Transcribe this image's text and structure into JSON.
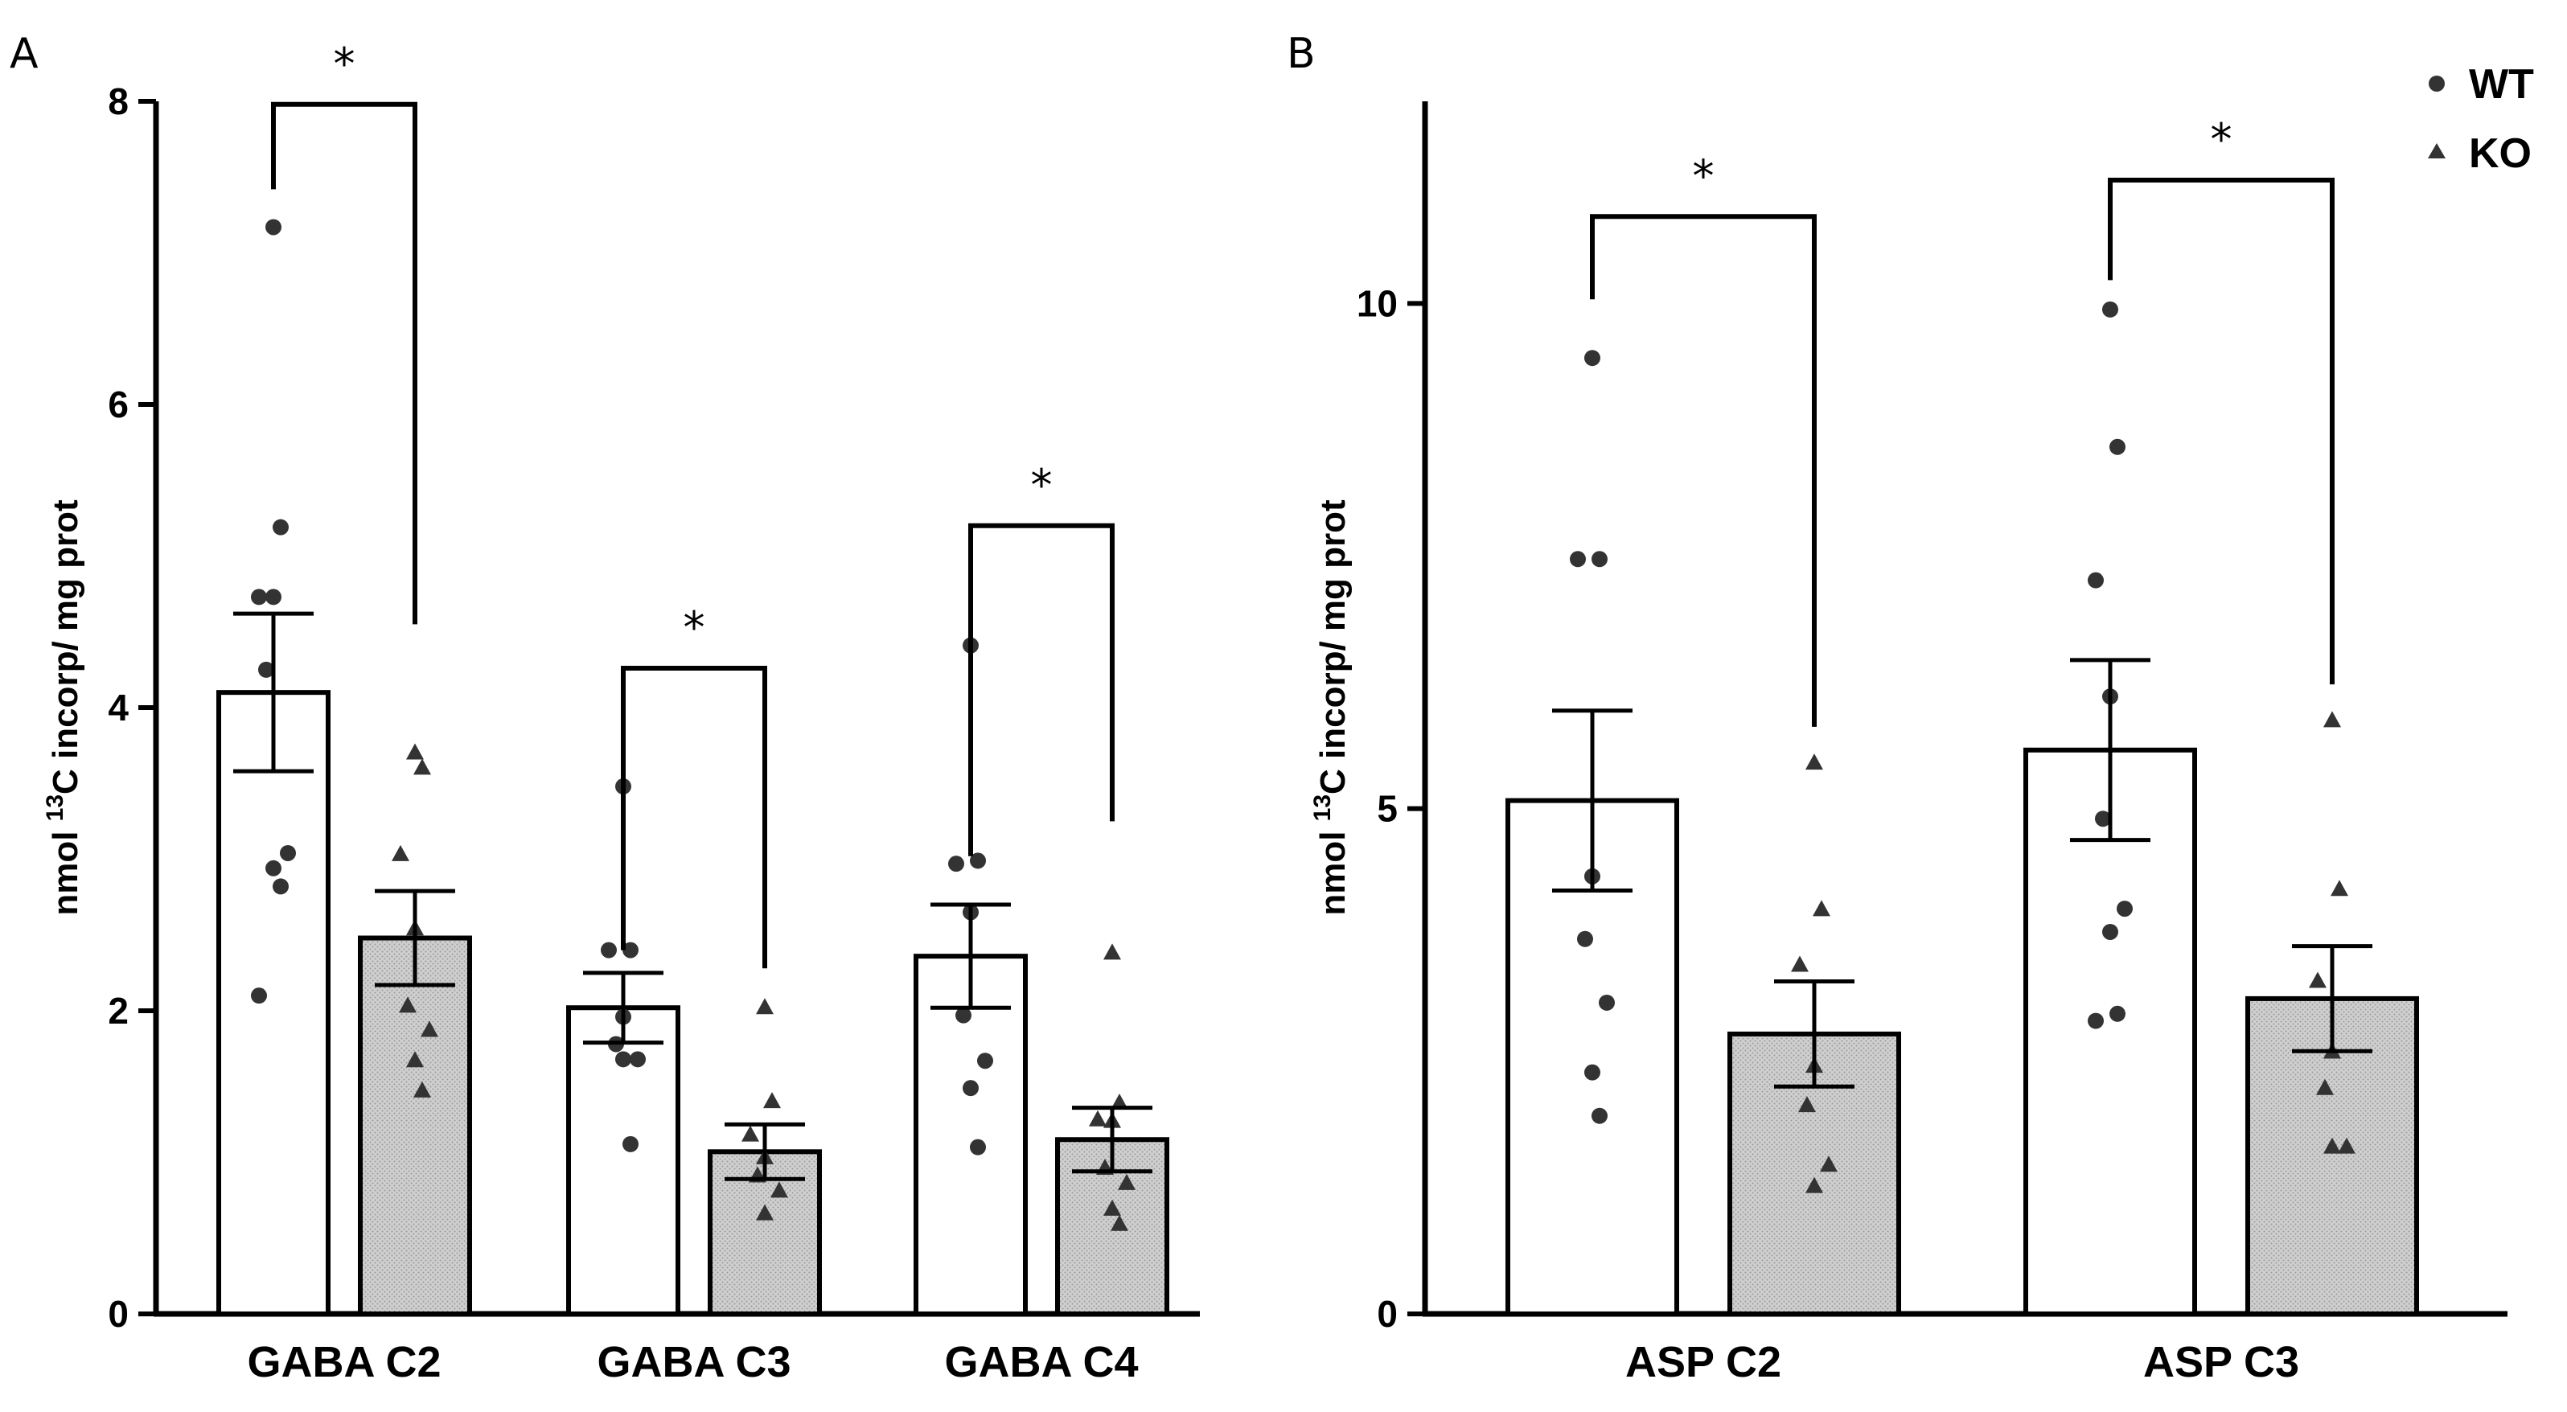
{
  "figure": {
    "legend": [
      {
        "key": "WT",
        "label": "WT",
        "marker": "circle"
      },
      {
        "key": "KO",
        "label": "KO",
        "marker": "triangle"
      }
    ],
    "colors": {
      "axis": "#000000",
      "wt_fill": "#ffffff",
      "ko_fill": "#c8c8c8",
      "point": "#333333"
    }
  },
  "chart_data": [
    {
      "panel": "A",
      "type": "bar",
      "ylabel_pre": "nmol ",
      "ylabel_sup": "13",
      "ylabel_post": "C incorp/ mg prot",
      "ylim": [
        0,
        8
      ],
      "yticks": [
        0,
        2,
        4,
        6,
        8
      ],
      "categories": [
        "GABA C2",
        "GABA C3",
        "GABA C4"
      ],
      "series": [
        {
          "name": "WT",
          "values": [
            4.1,
            2.02,
            2.36
          ],
          "sem": [
            0.52,
            0.23,
            0.34
          ],
          "points": [
            [
              7.17,
              5.19,
              4.73,
              4.73,
              4.25,
              3.04,
              2.94,
              2.82,
              2.1
            ],
            [
              3.48,
              2.4,
              2.4,
              1.96,
              1.78,
              1.68,
              1.68,
              1.12
            ],
            [
              4.41,
              2.99,
              2.97,
              2.65,
              1.97,
              1.67,
              1.49,
              1.1
            ]
          ]
        },
        {
          "name": "KO",
          "values": [
            2.48,
            1.07,
            1.15
          ],
          "sem": [
            0.31,
            0.18,
            0.21
          ],
          "points": [
            [
              3.7,
              3.6,
              3.03,
              2.54,
              2.03,
              1.87,
              1.67,
              1.47
            ],
            [
              2.02,
              1.4,
              1.18,
              1.03,
              0.91,
              0.81,
              0.66
            ],
            [
              2.38,
              1.39,
              1.28,
              1.27,
              0.96,
              0.86,
              0.69,
              0.59
            ]
          ]
        }
      ],
      "significance": [
        {
          "category": "GABA C2",
          "label": "*",
          "top": 7.98,
          "wt_end": 7.42,
          "ko_end": 4.55
        },
        {
          "category": "GABA C3",
          "label": "*",
          "top": 4.26,
          "wt_end": 2.4,
          "ko_end": 2.28
        },
        {
          "category": "GABA C4",
          "label": "*",
          "top": 5.2,
          "wt_end": 3.02,
          "ko_end": 3.25
        }
      ]
    },
    {
      "panel": "B",
      "type": "bar",
      "ylabel_pre": "nmol ",
      "ylabel_sup": "13",
      "ylabel_post": "C incorp/ mg prot",
      "ylim": [
        0,
        12
      ],
      "yticks": [
        0,
        5,
        10
      ],
      "categories": [
        "ASP C2",
        "ASP C3"
      ],
      "series": [
        {
          "name": "WT",
          "values": [
            5.08,
            5.58
          ],
          "sem": [
            0.89,
            0.89
          ],
          "points": [
            [
              9.46,
              7.47,
              7.47,
              4.33,
              3.71,
              3.08,
              2.39,
              1.96
            ],
            [
              9.94,
              8.58,
              7.26,
              6.11,
              4.9,
              4.01,
              3.78,
              2.97,
              2.9
            ]
          ]
        },
        {
          "name": "KO",
          "values": [
            2.77,
            3.12
          ],
          "sem": [
            0.52,
            0.52
          ],
          "points": [
            [
              5.45,
              4.0,
              3.45,
              2.45,
              2.06,
              1.47,
              1.26
            ],
            [
              5.87,
              4.2,
              3.29,
              2.59,
              2.23,
              1.65,
              1.65
            ]
          ]
        }
      ],
      "significance": [
        {
          "category": "ASP C2",
          "label": "*",
          "top": 10.86,
          "wt_end": 10.04,
          "ko_end": 5.81
        },
        {
          "category": "ASP C3",
          "label": "*",
          "top": 11.22,
          "wt_end": 10.23,
          "ko_end": 6.23
        }
      ]
    }
  ]
}
